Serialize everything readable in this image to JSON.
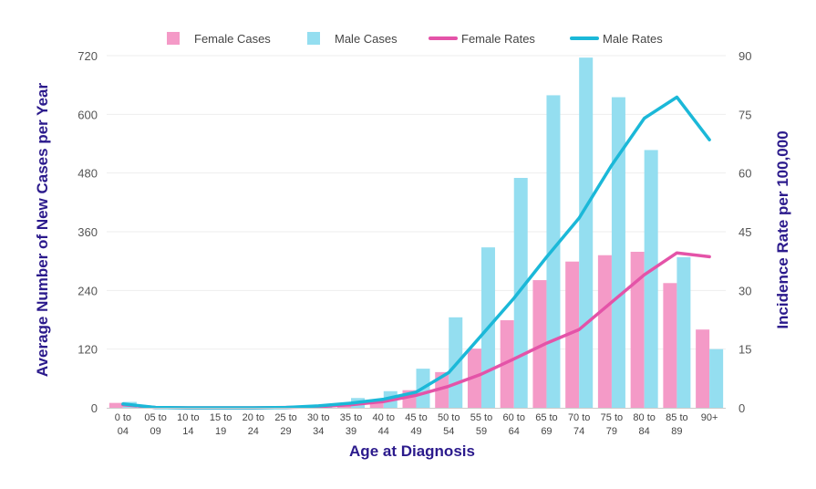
{
  "chart_data": {
    "type": "bar",
    "categories": [
      [
        "0 to",
        "04"
      ],
      [
        "05 to",
        "09"
      ],
      [
        "10 to",
        "14"
      ],
      [
        "15 to",
        "19"
      ],
      [
        "20 to",
        "24"
      ],
      [
        "25 to",
        "29"
      ],
      [
        "30 to",
        "34"
      ],
      [
        "35 to",
        "39"
      ],
      [
        "40 to",
        "44"
      ],
      [
        "45 to",
        "49"
      ],
      [
        "50 to",
        "54"
      ],
      [
        "55 to",
        "59"
      ],
      [
        "60 to",
        "64"
      ],
      [
        "65 to",
        "69"
      ],
      [
        "70 to",
        "74"
      ],
      [
        "75 to",
        "79"
      ],
      [
        "80 to",
        "84"
      ],
      [
        "85 to",
        "89"
      ],
      [
        "90+",
        ""
      ]
    ],
    "series": [
      {
        "name": "Female Cases",
        "kind": "bar",
        "axis": "left",
        "color": "#f49ac7",
        "values": [
          10,
          0,
          0,
          0,
          0,
          0,
          2,
          6,
          14,
          36,
          73,
          121,
          179,
          261,
          299,
          312,
          319,
          255,
          160
        ]
      },
      {
        "name": "Male Cases",
        "kind": "bar",
        "axis": "left",
        "color": "#94def0",
        "values": [
          12,
          0,
          0,
          0,
          0,
          1,
          4,
          20,
          34,
          80,
          185,
          328,
          470,
          639,
          716,
          635,
          527,
          308,
          120
        ]
      },
      {
        "name": "Female Rates",
        "kind": "line",
        "axis": "right",
        "color": "#e453a8",
        "values": [
          0.8,
          0.1,
          0,
          0,
          0,
          0.1,
          0.3,
          0.8,
          1.6,
          3.2,
          5.5,
          8.6,
          12.5,
          16.5,
          20.0,
          27.0,
          34.0,
          39.6,
          38.6
        ]
      },
      {
        "name": "Male Rates",
        "kind": "line",
        "axis": "right",
        "color": "#1bb8d8",
        "values": [
          1.0,
          0.1,
          0,
          0,
          0,
          0.1,
          0.5,
          1.2,
          2.2,
          4.0,
          9.0,
          18.5,
          28.0,
          38.5,
          48.5,
          62.0,
          74.0,
          79.4,
          68.5
        ]
      }
    ],
    "xlabel": "Age at Diagnosis",
    "ylabel": "Average Number of New Cases per Year",
    "y2label": "Incidence Rate per 100,000",
    "ylim": [
      0,
      720
    ],
    "y2lim": [
      0,
      90
    ],
    "yticks": [
      0,
      120,
      240,
      360,
      480,
      600,
      720
    ],
    "y2ticks": [
      0,
      15,
      30,
      45,
      60,
      75,
      90
    ],
    "grid": true,
    "legend_position": "top-center",
    "axis_title_color": "#2b1a8c"
  }
}
